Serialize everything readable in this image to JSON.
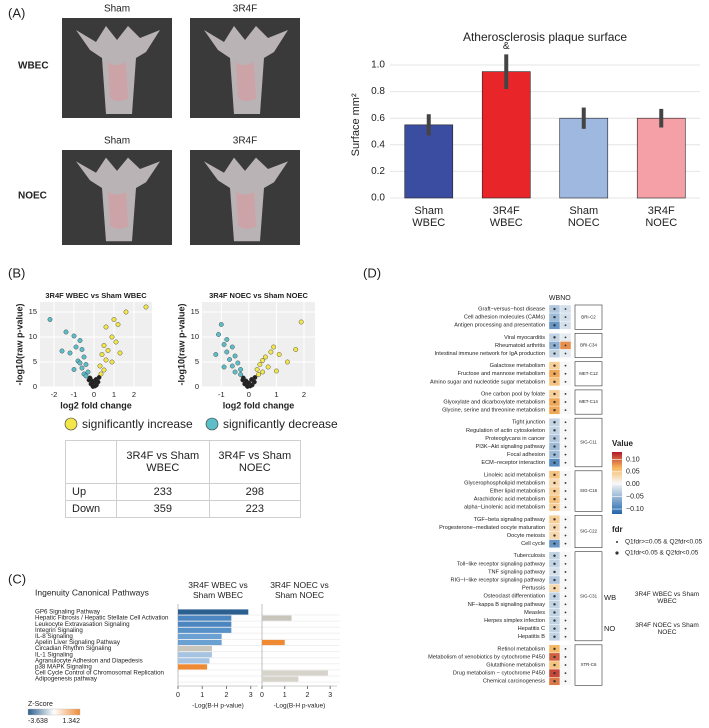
{
  "panels": [
    "(A)",
    "(B)",
    "(C)",
    "(D)"
  ],
  "photos": {
    "columns": [
      "Sham",
      "3R4F"
    ],
    "rows": [
      "WBEC",
      "NOEC"
    ]
  },
  "table": {
    "columns": [
      "3R4F vs Sham WBEC",
      "3R4F vs Sham NOEC"
    ],
    "rows": [
      {
        "label": "Up",
        "values": [
          233,
          298
        ]
      },
      {
        "label": "Down",
        "values": [
          359,
          223
        ]
      }
    ]
  },
  "chart_data": [
    {
      "type": "bar",
      "title": "Atherosclerosis plaque surface",
      "ylabel": "Surface mm²",
      "annotation": "&",
      "categories": [
        [
          "Sham",
          "WBEC"
        ],
        [
          "3R4F",
          "WBEC"
        ],
        [
          "Sham",
          "NOEC"
        ],
        [
          "3R4F",
          "NOEC"
        ]
      ],
      "values": [
        0.55,
        0.95,
        0.6,
        0.6
      ],
      "errors": [
        0.08,
        0.13,
        0.08,
        0.07
      ],
      "colors": [
        "#3b4da0",
        "#e8262a",
        "#9fb8e0",
        "#f4a0a6"
      ],
      "ylim": [
        0,
        1.1
      ],
      "yticks": [
        {
          "value": 0,
          "label": "0.0"
        },
        0.2,
        0.4,
        0.6,
        0.8,
        {
          "value": 1,
          "label": "1.0"
        }
      ],
      "grid": true
    },
    {
      "type": "scatter",
      "title": "3R4F WBEC vs Sham WBEC",
      "xlabel": "log2 fold change",
      "ylabel": "-log10(raw p-value)",
      "xlim": [
        -2.7,
        2.9
      ],
      "ylim": [
        0,
        17
      ],
      "xticks": [
        -2,
        -1,
        0,
        1,
        2
      ],
      "yticks": [
        0,
        5,
        10,
        15
      ],
      "grid": true,
      "series": [
        {
          "name": "significantly increase",
          "color": "#f2e64a",
          "x": [
            2.6,
            1.6,
            1.0,
            1.2,
            0.6,
            0.9,
            1.1,
            0.5,
            0.7,
            0.4,
            0.6,
            0.9,
            0.3,
            0.5,
            1.3,
            0.35
          ],
          "values": [
            16,
            15,
            13.5,
            12.5,
            12,
            10,
            9,
            8.3,
            7.3,
            6.5,
            5.4,
            5,
            4.2,
            3.4,
            6.8,
            2.6
          ]
        },
        {
          "name": "significantly decrease",
          "color": "#5cbec8",
          "x": [
            -2.2,
            -1.4,
            -1.0,
            -0.7,
            -0.9,
            -0.6,
            -1.2,
            -0.5,
            -0.8,
            -0.4,
            -0.6,
            -1.0,
            -0.3,
            -0.5,
            -0.7,
            -1.6,
            -0.4
          ],
          "values": [
            13.5,
            11,
            10.2,
            9.3,
            8,
            7.5,
            6.8,
            6,
            5.2,
            4.5,
            3.8,
            3.5,
            3,
            2.6,
            4.8,
            7.2,
            2.2
          ]
        },
        {
          "color": "#222222",
          "x": [
            -0.2,
            0.1,
            -0.1,
            0.2,
            0,
            -0.15,
            0.12,
            0.05,
            -0.05,
            0.25,
            -0.25
          ],
          "values": [
            1.8,
            1.5,
            1.2,
            1.0,
            0.8,
            0.6,
            0.4,
            0.2,
            0.1,
            1.9,
            1.4
          ]
        }
      ]
    },
    {
      "type": "scatter",
      "title": "3R4F NOEC vs Sham NOEC",
      "xlabel": "log2 fold change",
      "ylabel": "-log10(raw p-value)",
      "xlim": [
        -1.7,
        2.4
      ],
      "ylim": [
        0,
        17
      ],
      "xticks": [
        -1,
        0,
        1,
        2
      ],
      "yticks": [
        0,
        5,
        10,
        15
      ],
      "grid": true,
      "series": [
        {
          "name": "significantly increase",
          "color": "#f2e64a",
          "x": [
            1.9,
            0.9,
            0.8,
            1.1,
            0.6,
            0.5,
            1.4,
            0.4,
            0.7,
            0.3,
            0.5,
            1.0,
            0.35,
            1.7
          ],
          "values": [
            13,
            8,
            7,
            6.5,
            6,
            5.3,
            5,
            4.5,
            4,
            3.5,
            3,
            3.2,
            2.5,
            7.5
          ]
        },
        {
          "name": "significantly decrease",
          "color": "#5cbec8",
          "x": [
            -1.0,
            -1.1,
            -0.8,
            -0.9,
            -0.6,
            -0.8,
            -0.5,
            -0.7,
            -0.4,
            -0.6,
            -0.3,
            -0.5,
            -0.3,
            -1.2,
            -0.9
          ],
          "values": [
            12.5,
            10.5,
            9.5,
            8.5,
            8,
            7,
            6.2,
            5.5,
            4.8,
            4.2,
            3.5,
            3,
            2.5,
            6.5,
            4
          ]
        },
        {
          "color": "#222222",
          "x": [
            -0.2,
            0.1,
            -0.1,
            0.2,
            0,
            -0.15,
            0.12,
            0.05,
            -0.05,
            0.22,
            -0.22
          ],
          "values": [
            1.8,
            1.5,
            1.2,
            1.0,
            0.8,
            0.6,
            0.4,
            0.2,
            0.1,
            1.9,
            1.4
          ]
        }
      ]
    },
    {
      "type": "hbar",
      "title": "Ingenuity Canonical Pathways",
      "categories": [
        "GP6 Signaling Pathway",
        "Hepatic Fibrosis / Hepatic Stellate Cell Activation",
        "Leukocyte Extravasation Signaling",
        "Integrin Signaling",
        "IL-8 Signaling",
        "Apelin Liver Signaling Pathway",
        "Circadian Rhythm Signaling",
        "IL-1 Signaling",
        "Agranulocyte Adhesion and Diapedesis",
        "p38 MAPK Signaling",
        "Cell Cycle Control of Chromosomal Replication",
        "Adipogenesis pathway"
      ],
      "series": [
        {
          "name": "3R4F WBEC vs Sham WBEC",
          "values": [
            2.9,
            2.2,
            2.2,
            2.2,
            1.8,
            1.8,
            1.4,
            1.4,
            1.3,
            1.2,
            null,
            null
          ],
          "colors": [
            "#2b5f8f",
            "#4b86c0",
            "#4b86c0",
            "#5691c8",
            "#6aa0d2",
            "#6aa0d2",
            "#c8c5bd",
            "#a6c4e2",
            "#a6c4e2",
            "#f08a32",
            null,
            null
          ]
        },
        {
          "name": "3R4F NOEC vs Sham NOEC",
          "values": [
            null,
            1.3,
            null,
            null,
            null,
            1.0,
            null,
            null,
            null,
            null,
            2.9,
            1.6
          ],
          "colors": [
            null,
            "#c8c5bd",
            null,
            null,
            null,
            "#f08a32",
            null,
            null,
            null,
            null,
            "#d6d3cb",
            "#d6d3cb"
          ]
        }
      ],
      "xlim": [
        0,
        3.3
      ],
      "xticks": [
        0,
        1,
        2,
        3
      ],
      "xlabel": "-Log(B-H p-value)",
      "zscore": {
        "title": "Z-Score",
        "range": [
          -3.638,
          1.342
        ],
        "colors": [
          "#2b5f8f",
          "#ffffff",
          "#f08a32"
        ]
      }
    },
    {
      "type": "heatmap",
      "columns": [
        "WB",
        "NO"
      ],
      "groups": [
        {
          "name": "BRI-C2",
          "pathways": [
            "Graft−versus−host disease",
            "Cell adhesion molecules (CAMs)",
            "Antigen processing and presentation"
          ],
          "values": [
            [
              -0.04,
              -0.02
            ],
            [
              -0.05,
              -0.02
            ],
            [
              -0.08,
              -0.02
            ]
          ]
        },
        {
          "name": "BRI-C34",
          "pathways": [
            "Viral myocarditis",
            "Rheumatoid arthritis",
            "Intestinal immune network for IgA production"
          ],
          "values": [
            [
              -0.03,
              -0.01
            ],
            [
              -0.06,
              0.08
            ],
            [
              -0.03,
              -0.01
            ]
          ]
        },
        {
          "name": "MET-C12",
          "pathways": [
            "Galactose metabolism",
            "Fructose and mannose metabolism",
            "Amino sugar and nucleotide sugar metabolism"
          ],
          "values": [
            [
              0.04,
              0
            ],
            [
              0.07,
              0
            ],
            [
              0.05,
              0
            ]
          ]
        },
        {
          "name": "MET-C14",
          "pathways": [
            "One carbon pool by folate",
            "Glyoxylate and dicarboxylate metabolism",
            "Glycine, serine and threonine metabolism"
          ],
          "values": [
            [
              0.04,
              0
            ],
            [
              0.07,
              0
            ],
            [
              0.07,
              0
            ]
          ]
        },
        {
          "name": "SIG-C11",
          "pathways": [
            "Tight junction",
            "Regulation of actin cytoskeleton",
            "Proteoglycans in cancer",
            "PI3K−Akt signaling pathway",
            "Focal adhesion",
            "ECM−receptor interaction"
          ],
          "values": [
            [
              -0.03,
              0
            ],
            [
              -0.03,
              0
            ],
            [
              -0.04,
              0
            ],
            [
              -0.05,
              0
            ],
            [
              -0.05,
              0
            ],
            [
              -0.09,
              0
            ]
          ]
        },
        {
          "name": "SIG-C16",
          "pathways": [
            "Linoleic acid metabolism",
            "Glycerophospholipid metabolism",
            "Ether lipid metabolism",
            "Arachidonic acid metabolism",
            "alpha−Linolenic acid metabolism"
          ],
          "values": [
            [
              0.05,
              0
            ],
            [
              0.03,
              0
            ],
            [
              0.04,
              0
            ],
            [
              0.05,
              0
            ],
            [
              0.04,
              0
            ]
          ]
        },
        {
          "name": "SIG-C22",
          "pathways": [
            "TGF−beta signaling pathway",
            "Progesterone−mediated oocyte maturation",
            "Oocyte meiosis",
            "Cell cycle"
          ],
          "values": [
            [
              0.04,
              0
            ],
            [
              0.03,
              0
            ],
            [
              0.03,
              0
            ],
            [
              -0.08,
              0
            ]
          ]
        },
        {
          "name": "SIG-C31",
          "pathways": [
            "Tuberculosis",
            "Toll−like receptor signaling pathway",
            "TNF signaling pathway",
            "RIG−I−like receptor signaling pathway",
            "Pertussis",
            "Osteoclast differentiation",
            "NF−kappa B signaling pathway",
            "Measles",
            "Herpes simplex infection",
            "Hepatitis C",
            "Hepatitis B"
          ],
          "values": [
            [
              -0.03,
              0
            ],
            [
              -0.03,
              0
            ],
            [
              -0.02,
              0
            ],
            [
              -0.04,
              0
            ],
            [
              0.03,
              0
            ],
            [
              -0.03,
              0
            ],
            [
              -0.03,
              0
            ],
            [
              -0.03,
              0
            ],
            [
              -0.03,
              0
            ],
            [
              -0.03,
              0
            ],
            [
              -0.03,
              0
            ]
          ]
        },
        {
          "name": "XTR-C6",
          "pathways": [
            "Retinol metabolism",
            "Metabolism of xenobiotics by cytochrome P450",
            "Glutathione metabolism",
            "Drug metabolism − cytochrome P450",
            "Chemical carcinogenesis"
          ],
          "values": [
            [
              0.06,
              0
            ],
            [
              0.1,
              0
            ],
            [
              0.05,
              0
            ],
            [
              0.11,
              0
            ],
            [
              0.09,
              0
            ]
          ]
        }
      ],
      "zlim": [
        -0.12,
        0.13
      ],
      "colorscale": [
        "#2166ac",
        "#f7f7f7",
        "#f6b45a",
        "#b2182b"
      ],
      "colorbar_title": "Value",
      "colorbar_ticks": [
        {
          "value": 0.1,
          "label": "0.10"
        },
        {
          "value": 0.05,
          "label": "0.05"
        },
        {
          "value": 0,
          "label": "0.00"
        },
        {
          "value": -0.05,
          "label": "−0.05"
        },
        {
          "value": -0.1,
          "label": "−0.10"
        }
      ],
      "fdr": {
        "title": "fdr",
        "items": [
          "Q1fdr>=0.05 & Q2fdr<0.05",
          "Q1fdr<0.05 & Q2fdr<0.05"
        ]
      },
      "comparisons": [
        {
          "key": "WB",
          "label": "3R4F WBEC vs Sham WBEC"
        },
        {
          "key": "NO",
          "label": "3R4F NOEC vs Sham NOEC"
        }
      ]
    }
  ]
}
